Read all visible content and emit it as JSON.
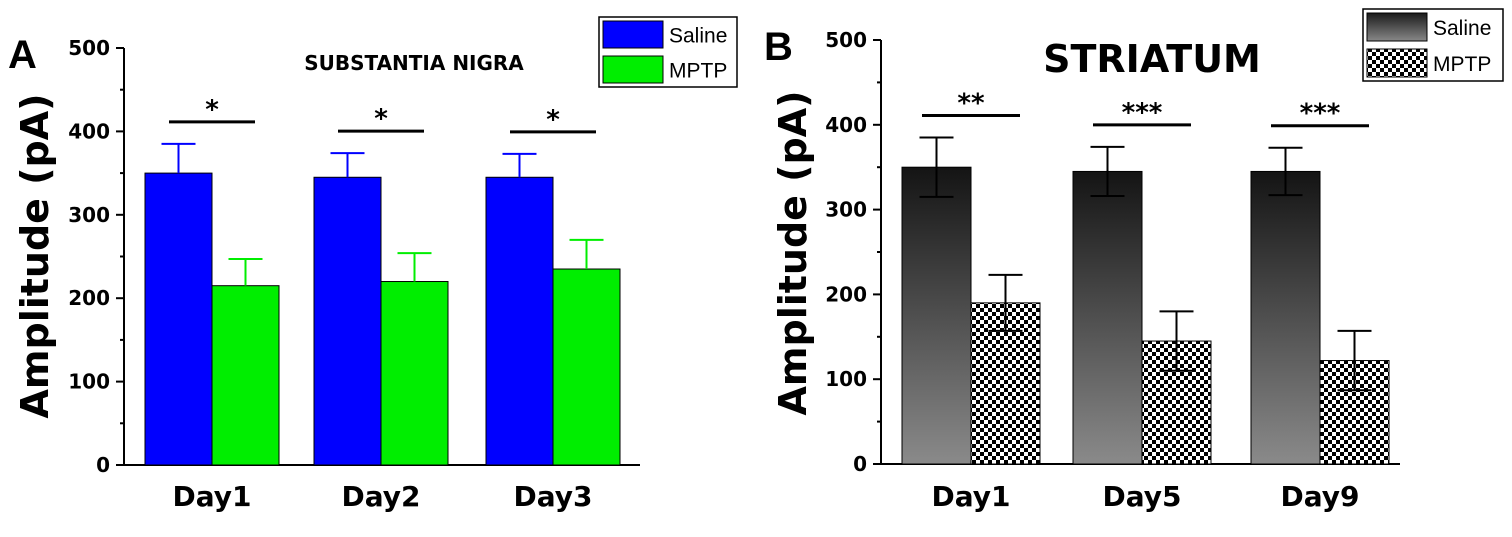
{
  "chart_data": [
    {
      "type": "bar",
      "panel_label": "A",
      "title": "SUBSTANTIA NIGRA",
      "xlabel": "",
      "ylabel": "Amplitude (pA)",
      "ylim": [
        0,
        500
      ],
      "yticks": [
        0,
        100,
        200,
        300,
        400,
        500
      ],
      "categories": [
        "Day1",
        "Day2",
        "Day3"
      ],
      "series": [
        {
          "name": "Saline",
          "values": [
            350,
            345,
            345
          ],
          "errors": [
            35,
            29,
            28
          ],
          "color": "#0000ff",
          "fill": "solid"
        },
        {
          "name": "MPTP",
          "values": [
            215,
            220,
            235
          ],
          "errors": [
            32,
            34,
            35
          ],
          "color": "#00ee00",
          "fill": "solid"
        }
      ],
      "error_bars": "upper",
      "significance": [
        "*",
        "*",
        "*"
      ],
      "legend_position": "top-right",
      "grid": false
    },
    {
      "type": "bar",
      "panel_label": "B",
      "title": "STRIATUM",
      "xlabel": "",
      "ylabel": "Amplitude (pA)",
      "ylim": [
        0,
        500
      ],
      "yticks": [
        0,
        100,
        200,
        300,
        400,
        500
      ],
      "categories": [
        "Day1",
        "Day5",
        "Day9"
      ],
      "series": [
        {
          "name": "Saline",
          "values": [
            350,
            345,
            345
          ],
          "errors": [
            35,
            29,
            28
          ],
          "color": "#333333",
          "fill": "gradient"
        },
        {
          "name": "MPTP",
          "values": [
            190,
            145,
            122
          ],
          "errors": [
            33,
            35,
            35
          ],
          "color": "#000000",
          "fill": "checker"
        }
      ],
      "error_bars": "both",
      "significance": [
        "**",
        "***",
        "***"
      ],
      "legend_position": "top-right",
      "grid": false
    }
  ]
}
